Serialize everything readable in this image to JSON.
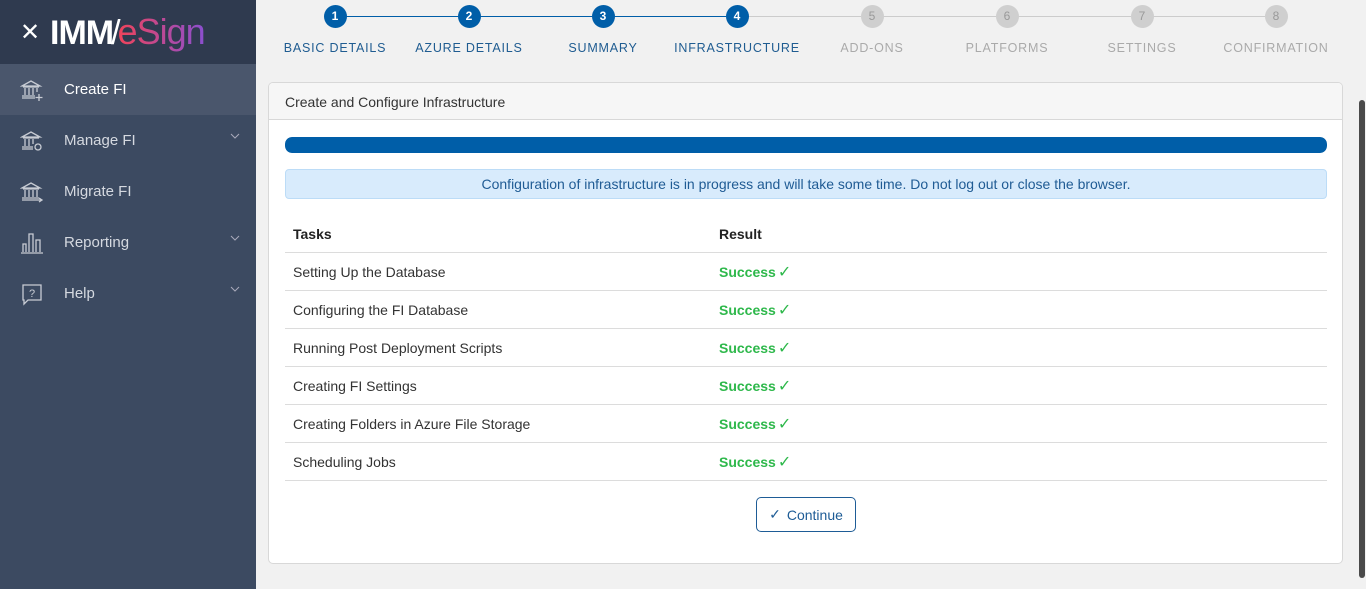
{
  "brand": {
    "logo_left": "IMM",
    "logo_right": "eSign"
  },
  "sidebar": {
    "items": [
      {
        "label": "Create FI",
        "icon": "bank-plus-icon",
        "active": true,
        "expandable": false
      },
      {
        "label": "Manage FI",
        "icon": "bank-gear-icon",
        "expandable": true
      },
      {
        "label": "Migrate FI",
        "icon": "bank-arrow-icon",
        "expandable": false
      },
      {
        "label": "Reporting",
        "icon": "bar-chart-icon",
        "expandable": true
      },
      {
        "label": "Help",
        "icon": "help-bubble-icon",
        "expandable": true
      }
    ]
  },
  "stepper": {
    "current": 4,
    "steps": [
      {
        "num": "1",
        "label": "BASIC DETAILS"
      },
      {
        "num": "2",
        "label": "AZURE DETAILS"
      },
      {
        "num": "3",
        "label": "SUMMARY"
      },
      {
        "num": "4",
        "label": "INFRASTRUCTURE"
      },
      {
        "num": "5",
        "label": "ADD-ONS"
      },
      {
        "num": "6",
        "label": "PLATFORMS"
      },
      {
        "num": "7",
        "label": "SETTINGS"
      },
      {
        "num": "8",
        "label": "CONFIRMATION"
      }
    ]
  },
  "card": {
    "title": "Create and Configure Infrastructure",
    "progress_percent": 100,
    "alert": "Configuration of infrastructure is in progress and will take some time. Do not log out or close the browser.",
    "table": {
      "headers": [
        "Tasks",
        "Result"
      ],
      "rows": [
        {
          "task": "Setting Up the Database",
          "result": "Success"
        },
        {
          "task": "Configuring the FI Database",
          "result": "Success"
        },
        {
          "task": "Running Post Deployment Scripts",
          "result": "Success"
        },
        {
          "task": "Creating FI Settings",
          "result": "Success"
        },
        {
          "task": "Creating Folders in Azure File Storage",
          "result": "Success"
        },
        {
          "task": "Scheduling Jobs",
          "result": "Success"
        }
      ]
    },
    "continue_label": "Continue"
  },
  "colors": {
    "primary": "#005ea8",
    "success": "#2eb84b",
    "sidebar": "#3c4a61"
  }
}
